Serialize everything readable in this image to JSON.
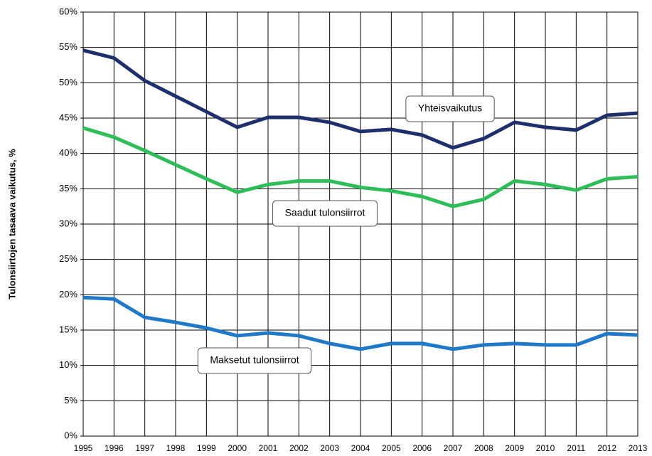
{
  "chart_data": {
    "type": "line",
    "y_label": "Tulonsiirtojen tasaava vaikutus, %",
    "categories": [
      "1995",
      "1996",
      "1997",
      "1998",
      "1999",
      "2000",
      "2001",
      "2002",
      "2003",
      "2004",
      "2005",
      "2006",
      "2007",
      "2008",
      "2009",
      "2010",
      "2011",
      "2012",
      "2013"
    ],
    "series": [
      {
        "name": "Yhteisvaikutus",
        "color": "#1f2f6b",
        "values": [
          54.6,
          53.5,
          50.3,
          48.1,
          45.9,
          43.7,
          45.1,
          45.1,
          44.4,
          43.1,
          43.4,
          42.6,
          40.8,
          42.1,
          44.4,
          43.7,
          43.3,
          45.4,
          45.7
        ]
      },
      {
        "name": "Saadut tulonsiirrot",
        "color": "#2ebd59",
        "values": [
          43.6,
          42.3,
          40.4,
          38.4,
          36.4,
          34.5,
          35.6,
          36.1,
          36.1,
          35.2,
          34.7,
          33.9,
          32.5,
          33.5,
          36.1,
          35.6,
          34.8,
          36.4,
          36.7
        ]
      },
      {
        "name": "Maksetut tulonsiirrot",
        "color": "#1f78c8",
        "values": [
          19.6,
          19.4,
          16.8,
          16.1,
          15.3,
          14.2,
          14.6,
          14.2,
          13.1,
          12.3,
          13.1,
          13.1,
          12.3,
          12.9,
          13.1,
          12.9,
          12.9,
          14.5,
          14.3
        ]
      }
    ],
    "ylim": [
      0,
      60
    ],
    "yticks": [
      {
        "value": 0,
        "label": "0%"
      },
      {
        "value": 5,
        "label": "5%"
      },
      {
        "value": 10,
        "label": "10%"
      },
      {
        "value": 15,
        "label": "15%"
      },
      {
        "value": 20,
        "label": "20%"
      },
      {
        "value": 25,
        "label": "25%"
      },
      {
        "value": 30,
        "label": "30%"
      },
      {
        "value": 35,
        "label": "35%"
      },
      {
        "value": 40,
        "label": "40%"
      },
      {
        "value": 45,
        "label": "45%"
      },
      {
        "value": 50,
        "label": "50%"
      },
      {
        "value": 55,
        "label": "55%"
      },
      {
        "value": 60,
        "label": "60%"
      }
    ],
    "grid": true
  }
}
